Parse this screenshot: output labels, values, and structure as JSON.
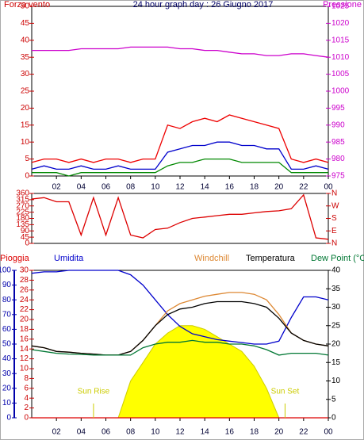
{
  "chart_data": [
    {
      "type": "line",
      "title": "24 hour graph day : 26 Giugno 2017",
      "y_label": "Forza vento",
      "y2_label": "Pressione",
      "x": [
        0,
        1,
        2,
        3,
        4,
        5,
        6,
        7,
        8,
        9,
        10,
        11,
        12,
        13,
        14,
        15,
        16,
        17,
        18,
        19,
        20,
        21,
        22,
        23,
        24
      ],
      "xlim": [
        0,
        24
      ],
      "xticks": [
        {
          "value": 2,
          "label": "02"
        },
        {
          "value": 4,
          "label": "04"
        },
        {
          "value": 6,
          "label": "06"
        },
        {
          "value": 8,
          "label": "08"
        },
        10,
        12,
        14,
        16,
        18,
        20,
        22,
        {
          "value": 24,
          "label": "00"
        }
      ],
      "ylim": [
        0,
        50
      ],
      "yticks": [
        0,
        5,
        10,
        15,
        20,
        25,
        30,
        35,
        40,
        45,
        50
      ],
      "y_color": "#cc0000",
      "y2lim": [
        975,
        1025
      ],
      "y2ticks": [
        975,
        980,
        985,
        990,
        995,
        1000,
        1005,
        1010,
        1015,
        1020,
        1025
      ],
      "y2_color": "#cc00cc",
      "series": [
        {
          "name": "Forza vento",
          "color": "#ee0000",
          "axis": "y",
          "values": [
            4,
            5,
            5,
            4,
            5,
            4,
            5,
            5,
            4,
            5,
            5,
            15,
            14,
            16,
            17,
            16,
            18,
            17,
            16,
            15,
            14,
            5,
            4,
            5,
            4
          ]
        },
        {
          "color": "#0000cc",
          "axis": "y",
          "values": [
            2,
            3,
            2,
            2,
            3,
            2,
            2,
            3,
            2,
            2,
            2,
            7,
            8,
            9,
            9,
            10,
            10,
            9,
            9,
            8,
            8,
            2,
            2,
            3,
            2
          ]
        },
        {
          "color": "#008800",
          "axis": "y",
          "values": [
            1,
            1,
            1,
            0,
            1,
            1,
            1,
            1,
            1,
            1,
            1,
            3,
            4,
            4,
            5,
            5,
            5,
            4,
            4,
            4,
            4,
            1,
            1,
            1,
            1
          ]
        },
        {
          "name": "Pressione",
          "color": "#cc00cc",
          "axis": "y2",
          "values": [
            1012,
            1012,
            1012,
            1012,
            1012.5,
            1012.5,
            1012.5,
            1012.5,
            1013,
            1013,
            1013,
            1013,
            1012.5,
            1012.5,
            1012,
            1012,
            1011.5,
            1011,
            1011,
            1010.5,
            1010.5,
            1011,
            1011,
            1010.5,
            1010
          ]
        }
      ]
    },
    {
      "type": "line",
      "x": [
        0,
        1,
        2,
        3,
        4,
        5,
        6,
        7,
        8,
        9,
        10,
        11,
        12,
        13,
        14,
        15,
        16,
        17,
        18,
        19,
        20,
        21,
        22,
        23,
        24
      ],
      "xlim": [
        0,
        24
      ],
      "ylim": [
        0,
        360
      ],
      "yticks": [
        0,
        45,
        90,
        135,
        180,
        225,
        270,
        315,
        360
      ],
      "y_color": "#cc0000",
      "y2lim": [
        0,
        360
      ],
      "y2ticks": [
        {
          "value": 360,
          "label": "N"
        },
        {
          "value": 270,
          "label": "W"
        },
        {
          "value": 180,
          "label": "S"
        },
        {
          "value": 90,
          "label": "E"
        },
        {
          "value": 0,
          "label": "N"
        }
      ],
      "y2_color": "#cc0000",
      "series": [
        {
          "color": "#dd0000",
          "axis": "y",
          "values": [
            320,
            330,
            300,
            300,
            60,
            330,
            60,
            330,
            60,
            40,
            100,
            110,
            150,
            180,
            190,
            200,
            210,
            210,
            220,
            230,
            235,
            250,
            350,
            40,
            30
          ]
        }
      ]
    },
    {
      "type": "line",
      "x": [
        0,
        1,
        2,
        3,
        4,
        5,
        6,
        7,
        8,
        9,
        10,
        11,
        12,
        13,
        14,
        15,
        16,
        17,
        18,
        19,
        20,
        21,
        22,
        23,
        24
      ],
      "xlim": [
        0,
        24
      ],
      "xticks": [
        {
          "value": 2,
          "label": "02"
        },
        {
          "value": 4,
          "label": "04"
        },
        {
          "value": 6,
          "label": "06"
        },
        {
          "value": 8,
          "label": "08"
        },
        10,
        12,
        14,
        16,
        18,
        20,
        22,
        {
          "value": 24,
          "label": "00"
        }
      ],
      "ylim": [
        0,
        100
      ],
      "yticks": [
        0,
        10,
        20,
        30,
        40,
        50,
        60,
        70,
        80,
        90,
        100
      ],
      "y_color": "#0000aa",
      "y3lim": [
        0,
        30
      ],
      "y3ticks": [
        0,
        2,
        4,
        6,
        8,
        10,
        12,
        14,
        16,
        18,
        20,
        22,
        24,
        26,
        28,
        30
      ],
      "y3_color": "#cc0000",
      "y2lim": [
        0,
        40
      ],
      "y2ticks": [
        0,
        5,
        10,
        15,
        20,
        25,
        30,
        35,
        40
      ],
      "y2_color": "#000000",
      "annotations": [
        {
          "text": "Sun Rise",
          "x": 5
        },
        {
          "text": "Sun Set",
          "x": 20.5
        }
      ],
      "series": [
        {
          "type": "area",
          "color": "#ffff00",
          "axis": "y2",
          "values": [
            0,
            0,
            0,
            0,
            0,
            0,
            0,
            0,
            10,
            15,
            20,
            23,
            25,
            25,
            24,
            22,
            20,
            18,
            14,
            8,
            0,
            0,
            0,
            0,
            0
          ]
        },
        {
          "name": "Pioggia",
          "color": "#dd0000",
          "axis": "y3",
          "values": [
            0,
            0,
            0,
            0,
            0,
            0,
            0,
            0,
            0,
            0,
            0,
            0,
            0,
            0,
            0,
            0,
            0,
            0,
            0,
            0,
            0,
            0,
            0,
            0,
            0
          ]
        },
        {
          "name": "Umidita",
          "color": "#0000cc",
          "axis": "y",
          "values": [
            98,
            99,
            99,
            100,
            100,
            100,
            100,
            100,
            97,
            90,
            80,
            70,
            62,
            57,
            55,
            53,
            52,
            51,
            50,
            50,
            52,
            68,
            82,
            82,
            80
          ]
        },
        {
          "name": "Windchill",
          "color": "#dd8833",
          "axis": "y2",
          "values": [
            19.5,
            19,
            18,
            17.8,
            17.5,
            17.3,
            17,
            17,
            18,
            21,
            25,
            29,
            31,
            32,
            33,
            33.5,
            34,
            34,
            33.5,
            32,
            28,
            23,
            21,
            20,
            19.5
          ]
        },
        {
          "name": "Temperatura",
          "color": "#000000",
          "axis": "y2",
          "values": [
            19.5,
            19,
            18,
            17.8,
            17.5,
            17.3,
            17,
            17,
            18,
            21,
            25,
            28,
            29.5,
            30,
            31,
            31.5,
            31.5,
            31.5,
            31,
            30,
            27,
            23,
            21,
            20,
            19.5
          ]
        },
        {
          "name": "Dew Point (°C",
          "color": "#007733",
          "axis": "y2",
          "values": [
            18.5,
            18,
            17.5,
            17.3,
            17.2,
            17,
            17,
            17,
            17,
            19,
            20,
            20.5,
            20.5,
            21,
            20.5,
            20.5,
            20,
            20,
            19.5,
            18.5,
            17,
            17.5,
            17.5,
            17.5,
            17
          ]
        }
      ]
    }
  ]
}
